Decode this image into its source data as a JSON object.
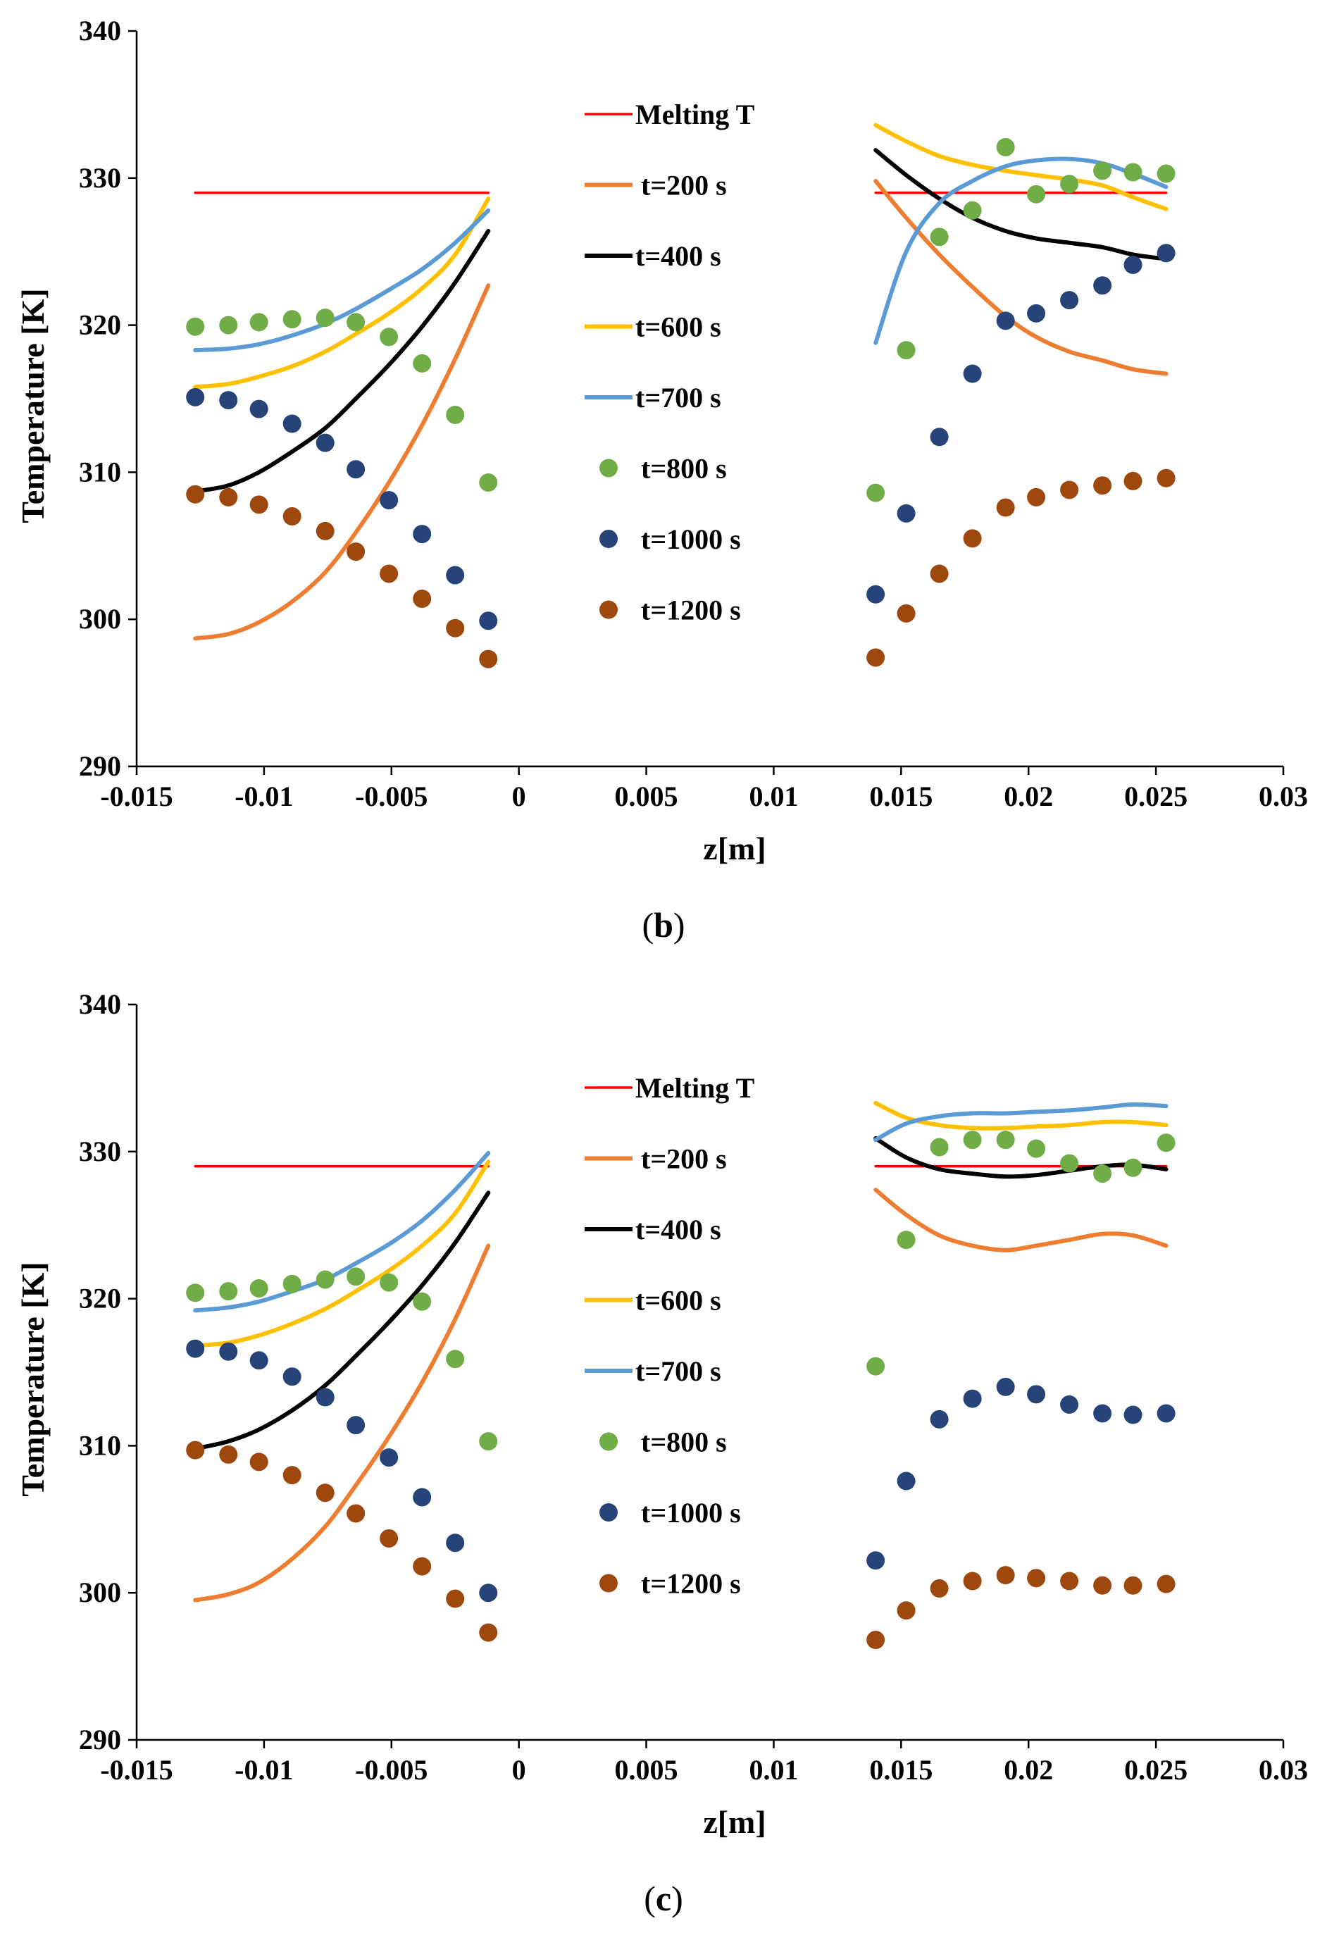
{
  "colors": {
    "melting": "#ff0000",
    "t200": "#ed7d31",
    "t400": "#000000",
    "t600": "#ffc000",
    "t700": "#5b9bd5",
    "t800": "#70ad47",
    "t1000": "#264478",
    "t1200": "#9e480e"
  },
  "chart_data": [
    {
      "type": "line",
      "caption": {
        "open": "(",
        "letter": "b",
        "close": ")"
      },
      "xlabel": "z[m]",
      "ylabel": "Temperature [K]",
      "xlim": [
        -0.015,
        0.03
      ],
      "ylim": [
        290,
        340
      ],
      "xticks": [
        "-0.015",
        "-0.01",
        "-0.005",
        "0",
        "0.005",
        "0.01",
        "0.015",
        "0.02",
        "0.025",
        "0.03"
      ],
      "yticks": [
        "290",
        "300",
        "310",
        "320",
        "330",
        "340"
      ],
      "legend_position": "center",
      "series": [
        {
          "name": "Melting T",
          "kind": "line",
          "color_key": "melting",
          "segments": [
            {
              "x": [
                -0.0127,
                -0.0012
              ],
              "y": [
                329,
                329
              ]
            },
            {
              "x": [
                0.014,
                0.0254
              ],
              "y": [
                329,
                329
              ]
            }
          ]
        },
        {
          "name": "t=200 s",
          "kind": "line",
          "color_key": "t200",
          "segments": [
            {
              "x": [
                -0.0127,
                -0.0114,
                -0.0102,
                -0.0089,
                -0.0076,
                -0.0064,
                -0.0051,
                -0.0038,
                -0.0025,
                -0.0012
              ],
              "y": [
                298.7,
                299.0,
                299.8,
                301.2,
                303.2,
                305.9,
                309.3,
                313.2,
                317.7,
                322.7
              ]
            },
            {
              "x": [
                0.014,
                0.0152,
                0.0165,
                0.0178,
                0.0191,
                0.0203,
                0.0216,
                0.0229,
                0.0241,
                0.0254
              ],
              "y": [
                329.8,
                327.3,
                324.8,
                322.6,
                320.6,
                319.2,
                318.2,
                317.6,
                317.0,
                316.7
              ]
            }
          ]
        },
        {
          "name": "t=400 s",
          "kind": "line",
          "color_key": "t400",
          "segments": [
            {
              "x": [
                -0.0127,
                -0.0114,
                -0.0102,
                -0.0089,
                -0.0076,
                -0.0064,
                -0.0051,
                -0.0038,
                -0.0025,
                -0.0012
              ],
              "y": [
                308.7,
                309.1,
                310.0,
                311.4,
                313.0,
                315.0,
                317.3,
                319.9,
                322.9,
                326.4
              ]
            },
            {
              "x": [
                0.014,
                0.0152,
                0.0165,
                0.0178,
                0.0191,
                0.0203,
                0.0216,
                0.0229,
                0.0241,
                0.0254
              ],
              "y": [
                331.9,
                330.2,
                328.6,
                327.3,
                326.4,
                325.9,
                325.6,
                325.3,
                324.8,
                324.5
              ]
            }
          ]
        },
        {
          "name": "t=600 s",
          "kind": "line",
          "color_key": "t600",
          "segments": [
            {
              "x": [
                -0.0127,
                -0.0114,
                -0.0102,
                -0.0089,
                -0.0076,
                -0.0064,
                -0.0051,
                -0.0038,
                -0.0025,
                -0.0012
              ],
              "y": [
                315.8,
                316.0,
                316.5,
                317.2,
                318.2,
                319.4,
                320.8,
                322.5,
                324.8,
                328.6
              ]
            },
            {
              "x": [
                0.014,
                0.0152,
                0.0165,
                0.0178,
                0.0191,
                0.0203,
                0.0216,
                0.0229,
                0.0241,
                0.0254
              ],
              "y": [
                333.6,
                332.5,
                331.5,
                330.9,
                330.5,
                330.2,
                329.9,
                329.5,
                328.7,
                327.9
              ]
            }
          ]
        },
        {
          "name": "t=700 s",
          "kind": "line",
          "color_key": "t700",
          "segments": [
            {
              "x": [
                -0.0127,
                -0.0114,
                -0.0102,
                -0.0089,
                -0.0076,
                -0.0064,
                -0.0051,
                -0.0038,
                -0.0025,
                -0.0012
              ],
              "y": [
                318.3,
                318.4,
                318.7,
                319.3,
                320.1,
                321.1,
                322.4,
                323.8,
                325.6,
                327.8
              ]
            },
            {
              "x": [
                0.014,
                0.0152,
                0.0165,
                0.0178,
                0.0191,
                0.0203,
                0.0216,
                0.0229,
                0.0241,
                0.0254
              ],
              "y": [
                318.8,
                325.0,
                328.3,
                329.8,
                330.8,
                331.2,
                331.3,
                331.0,
                330.3,
                329.4
              ]
            }
          ]
        },
        {
          "name": "t=800 s",
          "kind": "points",
          "color_key": "t800",
          "x": [
            -0.0127,
            -0.0114,
            -0.0102,
            -0.0089,
            -0.0076,
            -0.0064,
            -0.0051,
            -0.0038,
            -0.0025,
            -0.0012,
            0.014,
            0.0152,
            0.0165,
            0.0178,
            0.0191,
            0.0203,
            0.0216,
            0.0229,
            0.0241,
            0.0254
          ],
          "y": [
            319.9,
            320.0,
            320.2,
            320.4,
            320.5,
            320.2,
            319.2,
            317.4,
            313.9,
            309.3,
            308.6,
            318.3,
            326.0,
            327.8,
            332.1,
            328.9,
            329.6,
            330.5,
            330.4,
            330.3
          ]
        },
        {
          "name": "t=1000 s",
          "kind": "points",
          "color_key": "t1000",
          "x": [
            -0.0127,
            -0.0114,
            -0.0102,
            -0.0089,
            -0.0076,
            -0.0064,
            -0.0051,
            -0.0038,
            -0.0025,
            -0.0012,
            0.014,
            0.0152,
            0.0165,
            0.0178,
            0.0191,
            0.0203,
            0.0216,
            0.0229,
            0.0241,
            0.0254
          ],
          "y": [
            315.1,
            314.9,
            314.3,
            313.3,
            312.0,
            310.2,
            308.1,
            305.8,
            303.0,
            299.9,
            301.7,
            307.2,
            312.4,
            316.7,
            320.3,
            320.8,
            321.7,
            322.7,
            324.1,
            324.9
          ]
        },
        {
          "name": "t=1200 s",
          "kind": "points",
          "color_key": "t1200",
          "x": [
            -0.0127,
            -0.0114,
            -0.0102,
            -0.0089,
            -0.0076,
            -0.0064,
            -0.0051,
            -0.0038,
            -0.0025,
            -0.0012,
            0.014,
            0.0152,
            0.0165,
            0.0178,
            0.0191,
            0.0203,
            0.0216,
            0.0229,
            0.0241,
            0.0254
          ],
          "y": [
            308.5,
            308.3,
            307.8,
            307.0,
            306.0,
            304.6,
            303.1,
            301.4,
            299.4,
            297.3,
            297.4,
            300.4,
            303.1,
            305.5,
            307.6,
            308.3,
            308.8,
            309.1,
            309.4,
            309.6
          ]
        }
      ]
    },
    {
      "type": "line",
      "caption": {
        "open": "(",
        "letter": "c",
        "close": ")"
      },
      "xlabel": "z[m]",
      "ylabel": "Temperature [K]",
      "xlim": [
        -0.015,
        0.03
      ],
      "ylim": [
        290,
        340
      ],
      "xticks": [
        "-0.015",
        "-0.01",
        "-0.005",
        "0",
        "0.005",
        "0.01",
        "0.015",
        "0.02",
        "0.025",
        "0.03"
      ],
      "yticks": [
        "290",
        "300",
        "310",
        "320",
        "330",
        "340"
      ],
      "legend_position": "center",
      "series": [
        {
          "name": "Melting T",
          "kind": "line",
          "color_key": "melting",
          "segments": [
            {
              "x": [
                -0.0127,
                -0.0012
              ],
              "y": [
                329,
                329
              ]
            },
            {
              "x": [
                0.014,
                0.0254
              ],
              "y": [
                329,
                329
              ]
            }
          ]
        },
        {
          "name": "t=200 s",
          "kind": "line",
          "color_key": "t200",
          "segments": [
            {
              "x": [
                -0.0127,
                -0.0114,
                -0.0102,
                -0.0089,
                -0.0076,
                -0.0064,
                -0.0051,
                -0.0038,
                -0.0025,
                -0.0012
              ],
              "y": [
                299.5,
                299.9,
                300.7,
                302.3,
                304.5,
                307.3,
                310.6,
                314.3,
                318.6,
                323.6
              ]
            },
            {
              "x": [
                0.014,
                0.0152,
                0.0165,
                0.0178,
                0.0191,
                0.0203,
                0.0216,
                0.0229,
                0.0241,
                0.0254
              ],
              "y": [
                327.4,
                325.7,
                324.3,
                323.6,
                323.3,
                323.6,
                324.0,
                324.4,
                324.3,
                323.6
              ]
            }
          ]
        },
        {
          "name": "t=400 s",
          "kind": "line",
          "color_key": "t400",
          "segments": [
            {
              "x": [
                -0.0127,
                -0.0114,
                -0.0102,
                -0.0089,
                -0.0076,
                -0.0064,
                -0.0051,
                -0.0038,
                -0.0025,
                -0.0012
              ],
              "y": [
                309.8,
                310.3,
                311.1,
                312.4,
                314.1,
                316.1,
                318.4,
                320.9,
                323.8,
                327.2
              ]
            },
            {
              "x": [
                0.014,
                0.0152,
                0.0165,
                0.0178,
                0.0191,
                0.0203,
                0.0216,
                0.0229,
                0.0241,
                0.0254
              ],
              "y": [
                330.9,
                329.6,
                328.8,
                328.5,
                328.3,
                328.4,
                328.7,
                329.0,
                329.1,
                328.8
              ]
            }
          ]
        },
        {
          "name": "t=600 s",
          "kind": "line",
          "color_key": "t600",
          "segments": [
            {
              "x": [
                -0.0127,
                -0.0114,
                -0.0102,
                -0.0089,
                -0.0076,
                -0.0064,
                -0.0051,
                -0.0038,
                -0.0025,
                -0.0012
              ],
              "y": [
                316.8,
                317.0,
                317.5,
                318.3,
                319.3,
                320.5,
                321.9,
                323.6,
                325.8,
                329.3
              ]
            },
            {
              "x": [
                0.014,
                0.0152,
                0.0165,
                0.0178,
                0.0191,
                0.0203,
                0.0216,
                0.0229,
                0.0241,
                0.0254
              ],
              "y": [
                333.3,
                332.3,
                331.8,
                331.6,
                331.6,
                331.7,
                331.8,
                332.0,
                332.0,
                331.8
              ]
            }
          ]
        },
        {
          "name": "t=700 s",
          "kind": "line",
          "color_key": "t700",
          "segments": [
            {
              "x": [
                -0.0127,
                -0.0114,
                -0.0102,
                -0.0089,
                -0.0076,
                -0.0064,
                -0.0051,
                -0.0038,
                -0.0025,
                -0.0012
              ],
              "y": [
                319.2,
                319.4,
                319.8,
                320.5,
                321.3,
                322.4,
                323.7,
                325.3,
                327.4,
                329.9
              ]
            },
            {
              "x": [
                0.014,
                0.0152,
                0.0165,
                0.0178,
                0.0191,
                0.0203,
                0.0216,
                0.0229,
                0.0241,
                0.0254
              ],
              "y": [
                330.8,
                331.9,
                332.4,
                332.6,
                332.6,
                332.7,
                332.8,
                333.0,
                333.2,
                333.1
              ]
            }
          ]
        },
        {
          "name": "t=800 s",
          "kind": "points",
          "color_key": "t800",
          "x": [
            -0.0127,
            -0.0114,
            -0.0102,
            -0.0089,
            -0.0076,
            -0.0064,
            -0.0051,
            -0.0038,
            -0.0025,
            -0.0012,
            0.014,
            0.0152,
            0.0165,
            0.0178,
            0.0191,
            0.0203,
            0.0216,
            0.0229,
            0.0241,
            0.0254
          ],
          "y": [
            320.4,
            320.5,
            320.7,
            321.0,
            321.3,
            321.5,
            321.1,
            319.8,
            315.9,
            310.3,
            315.4,
            324.0,
            330.3,
            330.8,
            330.8,
            330.2,
            329.2,
            328.5,
            328.9,
            330.6
          ]
        },
        {
          "name": "t=1000 s",
          "kind": "points",
          "color_key": "t1000",
          "x": [
            -0.0127,
            -0.0114,
            -0.0102,
            -0.0089,
            -0.0076,
            -0.0064,
            -0.0051,
            -0.0038,
            -0.0025,
            -0.0012,
            0.014,
            0.0152,
            0.0165,
            0.0178,
            0.0191,
            0.0203,
            0.0216,
            0.0229,
            0.0241,
            0.0254
          ],
          "y": [
            316.6,
            316.4,
            315.8,
            314.7,
            313.3,
            311.4,
            309.2,
            306.5,
            303.4,
            300.0,
            302.2,
            307.6,
            311.8,
            313.2,
            314.0,
            313.5,
            312.8,
            312.2,
            312.1,
            312.2
          ]
        },
        {
          "name": "t=1200 s",
          "kind": "points",
          "color_key": "t1200",
          "x": [
            -0.0127,
            -0.0114,
            -0.0102,
            -0.0089,
            -0.0076,
            -0.0064,
            -0.0051,
            -0.0038,
            -0.0025,
            -0.0012,
            0.014,
            0.0152,
            0.0165,
            0.0178,
            0.0191,
            0.0203,
            0.0216,
            0.0229,
            0.0241,
            0.0254
          ],
          "y": [
            309.7,
            309.4,
            308.9,
            308.0,
            306.8,
            305.4,
            303.7,
            301.8,
            299.6,
            297.3,
            296.8,
            298.8,
            300.3,
            300.8,
            301.2,
            301.0,
            300.8,
            300.5,
            300.5,
            300.6
          ]
        }
      ]
    }
  ]
}
